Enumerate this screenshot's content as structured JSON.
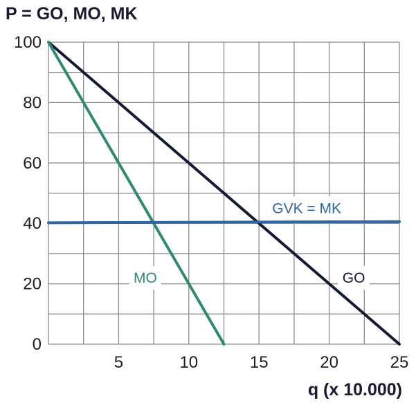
{
  "chart_data": {
    "type": "line",
    "ylabel": "P = GO, MO, MK",
    "xlabel": "q (x 10.000)",
    "xlim": [
      0,
      25
    ],
    "ylim": [
      0,
      100
    ],
    "x_ticks": [
      5,
      10,
      15,
      20,
      25
    ],
    "y_ticks": [
      0,
      20,
      40,
      60,
      80,
      100
    ],
    "grid": true,
    "grid_minor_x": 2.5,
    "grid_minor_y": 10,
    "series": [
      {
        "name": "GO",
        "color": "#141a33",
        "x": [
          0,
          25
        ],
        "y": [
          100,
          0
        ],
        "label_at": [
          21.75,
          22
        ]
      },
      {
        "name": "MO",
        "color": "#2e8b6e",
        "x": [
          0,
          12.5
        ],
        "y": [
          100,
          0
        ],
        "label_at": [
          6.9,
          22
        ]
      },
      {
        "name": "GVK = MK",
        "color": "#2f64a8",
        "x": [
          0,
          25
        ],
        "y": [
          40.2,
          40.6
        ],
        "label_at": [
          18.4,
          45
        ]
      }
    ]
  }
}
